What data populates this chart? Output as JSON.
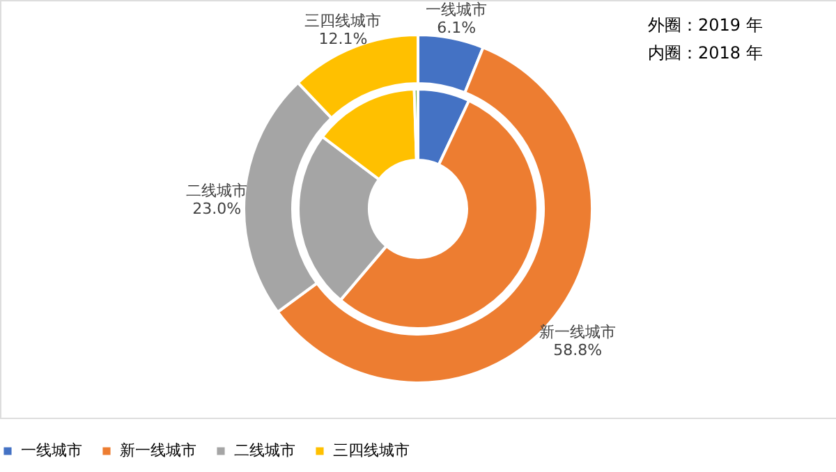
{
  "chart_data": {
    "type": "donut",
    "categories": [
      "一线城市",
      "新一线城市",
      "二线城市",
      "三四线城市",
      null
    ],
    "series": [
      {
        "values": [
          6.1,
          58.8,
          23.0,
          12.1,
          null
        ],
        "colors": [
          "#4472c4",
          "#ed7d31",
          "#a5a5a5",
          "#ffc000",
          "#70ad47"
        ],
        "value_labels": [
          "6.1%",
          "58.8%",
          "23.0%",
          "12.1%",
          null
        ]
      },
      {
        "values": [
          7.0,
          54.2,
          24.1,
          14.2,
          0.5
        ],
        "colors": [
          "#4472c4",
          "#ed7d31",
          "#a5a5a5",
          "#ffc000",
          "#70ad47"
        ]
      }
    ],
    "annotations": [
      "外圈：2019 年",
      "内圈：2018 年"
    ],
    "legend": "bottom"
  }
}
